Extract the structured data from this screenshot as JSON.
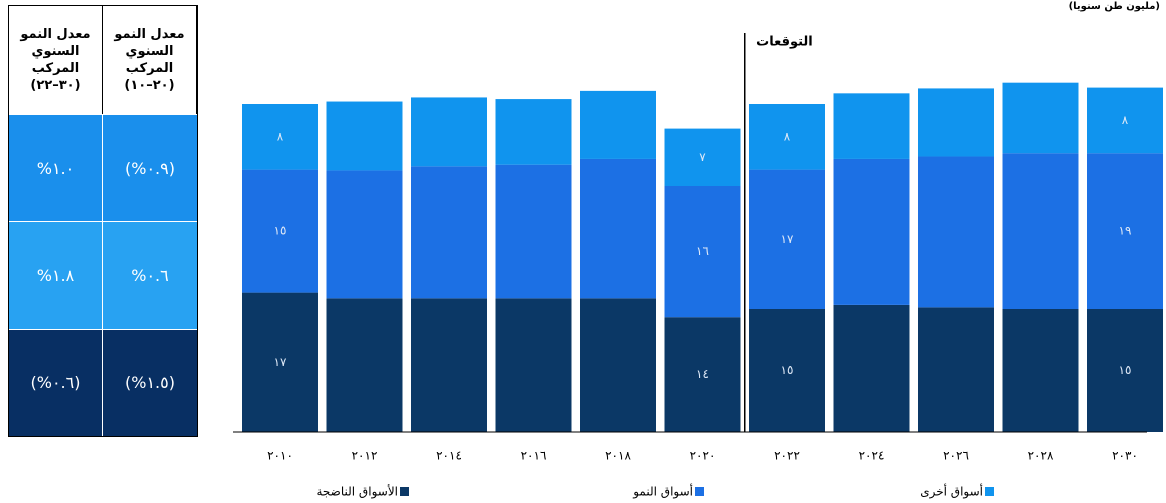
{
  "unit_label": "(مليون طن سنويا)",
  "table": {
    "header": [
      [
        "معدل النمو",
        "السنوي",
        "المركب",
        "(٣٠–٢٢)"
      ],
      [
        "معدل النمو",
        "السنوي",
        "المركب",
        "(٢٠–١٠)"
      ]
    ],
    "rows": [
      [
        "%١.٠",
        "(%٠.٩)"
      ],
      [
        "%١.٨",
        "%٠.٦"
      ],
      [
        "(%٠.٦)",
        "(%١.٥)"
      ]
    ],
    "colors": [
      "#1a8fec",
      "#28a2f2",
      "#082f63"
    ]
  },
  "chart_data": {
    "type": "stacked_bar",
    "annotation": "التوقعات",
    "categories": [
      "٢٠١٠",
      "٢٠١٢",
      "٢٠١٤",
      "٢٠١٦",
      "٢٠١٨",
      "٢٠٢٠",
      "٢٠٢٢",
      "٢٠٢٤",
      "٢٠٢٦",
      "٢٠٢٨",
      "٢٠٣٠"
    ],
    "series": [
      {
        "name": "الأسواق الناضجة",
        "color": "#0b3866",
        "values": [
          17,
          16.3,
          16.3,
          16.3,
          16.3,
          14,
          15,
          15.5,
          15.2,
          15,
          15
        ],
        "value_labels": [
          "١٧",
          null,
          null,
          null,
          null,
          "١٤",
          "١٥",
          null,
          null,
          null,
          "١٥"
        ]
      },
      {
        "name": "أسواق النمو",
        "color": "#1c70e4",
        "values": [
          15,
          15.6,
          16.1,
          16.3,
          17,
          16,
          17,
          17.8,
          18.4,
          19,
          19
        ],
        "value_labels": [
          "١٥",
          null,
          null,
          null,
          null,
          "١٦",
          "١٧",
          null,
          null,
          null,
          "١٩"
        ]
      },
      {
        "name": "أسواق أخرى",
        "color": "#1094ee",
        "values": [
          8,
          8.4,
          8.4,
          8,
          8.3,
          7,
          8,
          8,
          8.3,
          8.6,
          8
        ],
        "value_labels": [
          "٨",
          null,
          null,
          null,
          null,
          "٧",
          "٨",
          null,
          null,
          null,
          "٨"
        ]
      }
    ]
  }
}
